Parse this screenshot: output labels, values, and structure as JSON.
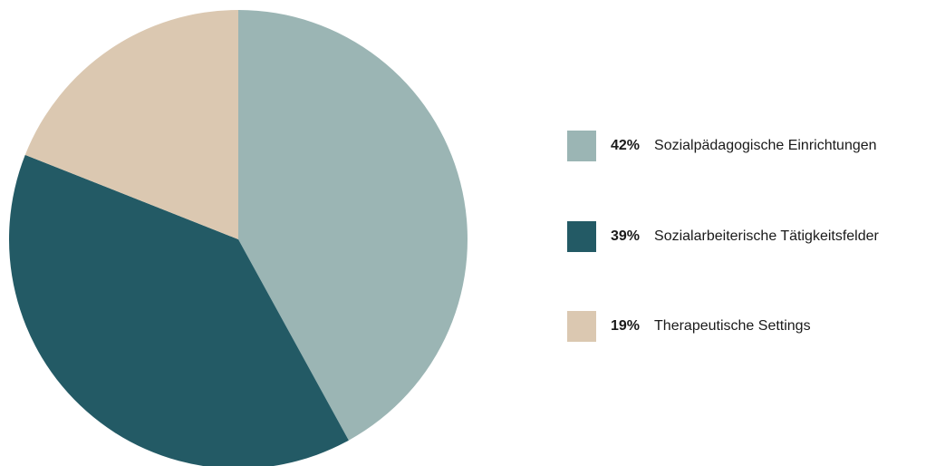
{
  "chart_data": {
    "type": "pie",
    "title": "",
    "slices": [
      {
        "label": "Sozialpädagogische Einrichtungen",
        "value": 42,
        "value_label": "42%",
        "color": "#9bb5b4"
      },
      {
        "label": "Sozialarbeiterische Tätigkeitsfelder",
        "value": 39,
        "value_label": "39%",
        "color": "#235a65"
      },
      {
        "label": "Therapeutische Settings",
        "value": 19,
        "value_label": "19%",
        "color": "#dbc8b1"
      }
    ],
    "legend_position": "right"
  },
  "legend": {
    "items": [
      {
        "percent": "42%",
        "label": "Sozialpädagogische Einrichtungen"
      },
      {
        "percent": "39%",
        "label": "Sozialarbeiterische Tätigkeitsfelder"
      },
      {
        "percent": "19%",
        "label": "Therapeutische Settings"
      }
    ]
  }
}
